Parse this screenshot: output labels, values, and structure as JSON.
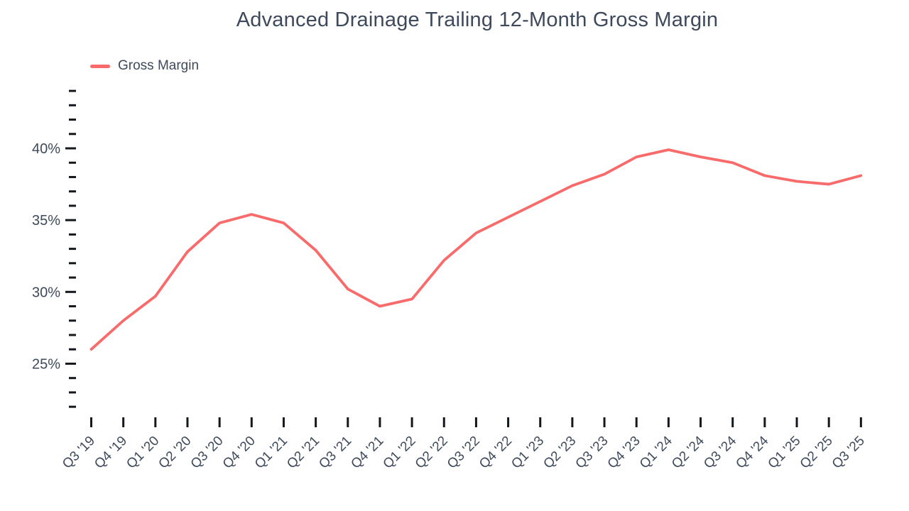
{
  "header": {
    "title": "Advanced Drainage Trailing 12-Month Gross Margin"
  },
  "legend": {
    "items": [
      {
        "label": "Gross Margin",
        "color": "#F96B6B"
      }
    ]
  },
  "chart_data": {
    "type": "line",
    "title": "Advanced Drainage Trailing 12-Month Gross Margin",
    "categories": [
      "Q3 '19",
      "Q4 '19",
      "Q1 '20",
      "Q2 '20",
      "Q3 '20",
      "Q4 '20",
      "Q1 '21",
      "Q2 '21",
      "Q3 '21",
      "Q4 '21",
      "Q1 '22",
      "Q2 '22",
      "Q3 '22",
      "Q4 '22",
      "Q1 '23",
      "Q2 '23",
      "Q3 '23",
      "Q4 '23",
      "Q1 '24",
      "Q2 '24",
      "Q3 '24",
      "Q4 '24",
      "Q1 '25",
      "Q2 '25",
      "Q3 '25"
    ],
    "series": [
      {
        "name": "Gross Margin",
        "color": "#F96B6B",
        "values": [
          26.0,
          28.0,
          29.7,
          32.8,
          34.8,
          35.4,
          34.8,
          32.9,
          30.2,
          29.0,
          29.5,
          32.2,
          34.1,
          35.2,
          36.3,
          37.4,
          38.2,
          39.4,
          39.9,
          39.4,
          39.0,
          38.1,
          37.7,
          37.5,
          38.1
        ]
      }
    ],
    "xlabel": "",
    "ylabel": "",
    "y_axis": {
      "tick_min": 22,
      "tick_max": 44,
      "tick_step": 1,
      "labeled_ticks": [
        25,
        30,
        35,
        40
      ],
      "tick_labels": [
        "25%",
        "30%",
        "35%",
        "40%"
      ],
      "unit": "%"
    },
    "ylim": [
      22,
      44
    ],
    "grid": false,
    "legend_position": "top-left"
  },
  "colors": {
    "line": "#F96B6B",
    "text": "#3E4A5B",
    "tick": "#14181D",
    "background": "#FFFFFF"
  }
}
